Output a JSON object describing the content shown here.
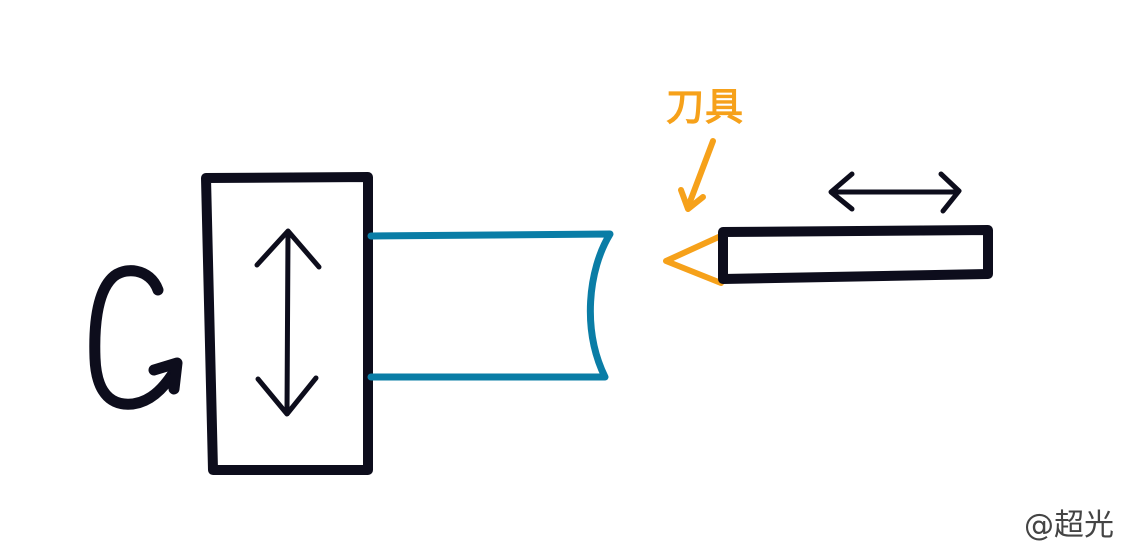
{
  "labels": {
    "tool": "刀具",
    "watermark": "@超光"
  },
  "colors": {
    "ink": "#0d0d1c",
    "workpiece": "#0a7da6",
    "tool_accent": "#f6a11a",
    "background": "#ffffff"
  },
  "icons": {
    "chuck_motion": "double-arrow-vertical",
    "tool_motion": "double-arrow-horizontal",
    "rotation": "curved-arrow",
    "tool_pointer": "arrow-down-left"
  }
}
